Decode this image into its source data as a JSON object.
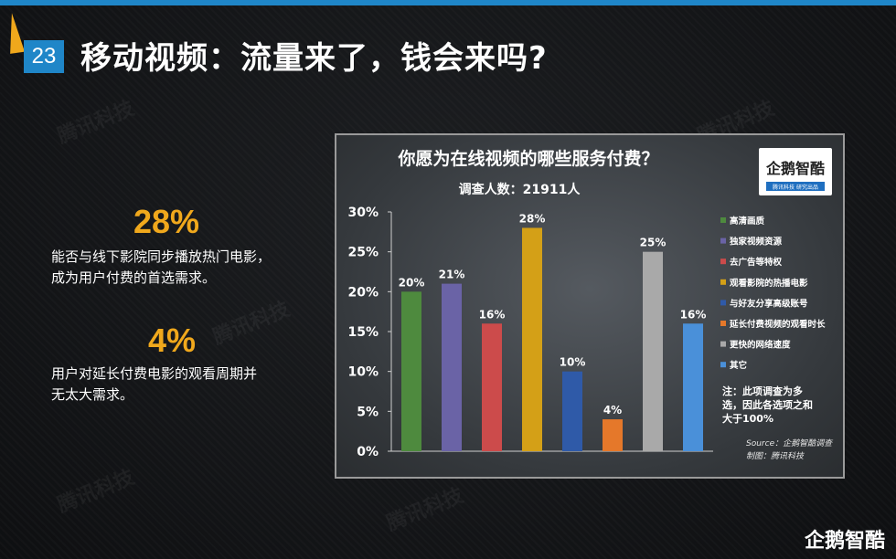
{
  "slide": {
    "number": "23",
    "title": "移动视频：流量来了，钱会来吗?"
  },
  "watermark": "腾讯科技",
  "stats": [
    {
      "value": "28%",
      "text_line1": "能否与线下影院同步播放热门电影，",
      "text_line2": "成为用户付费的首选需求。"
    },
    {
      "value": "4%",
      "text_line1": "用户对延长付费电影的观看周期并",
      "text_line2": "无太大需求。"
    }
  ],
  "logo": {
    "name": "企鹅智酷",
    "sub": "腾讯科技 研究出品"
  },
  "footer_logo": "企鹅智酷",
  "chart_data": {
    "type": "bar",
    "title": "你愿为在线视频的哪些服务付费？",
    "subtitle": "调查人数：21911人",
    "categories": [
      "高清画质",
      "独家视频资源",
      "去广告等特权",
      "观看影院的热播电影",
      "与好友分享高级账号",
      "延长付费视频的观看时长",
      "更快的网络速度",
      "其它"
    ],
    "values": [
      20,
      21,
      16,
      28,
      10,
      4,
      25,
      16
    ],
    "value_labels": [
      "20%",
      "21%",
      "16%",
      "28%",
      "10%",
      "4%",
      "25%",
      "16%"
    ],
    "colors": [
      "#4e8a3e",
      "#6a63a6",
      "#cc4b4b",
      "#d4a017",
      "#2f5aa8",
      "#e5782a",
      "#a9a9a9",
      "#4a90d9"
    ],
    "ylim": [
      0,
      30
    ],
    "yticks": [
      "0%",
      "5%",
      "10%",
      "15%",
      "20%",
      "25%",
      "30%"
    ],
    "legend_position": "right",
    "note": "注：此项调查为多选，因此各选项之和大于100%",
    "note_line1": "注：此项调查为多",
    "note_line2": "选，因此各选项之和",
    "note_line3": "大于100%",
    "source_line1": "Source：企鹅智酷调查",
    "source_line2": "制图：腾讯科技"
  }
}
